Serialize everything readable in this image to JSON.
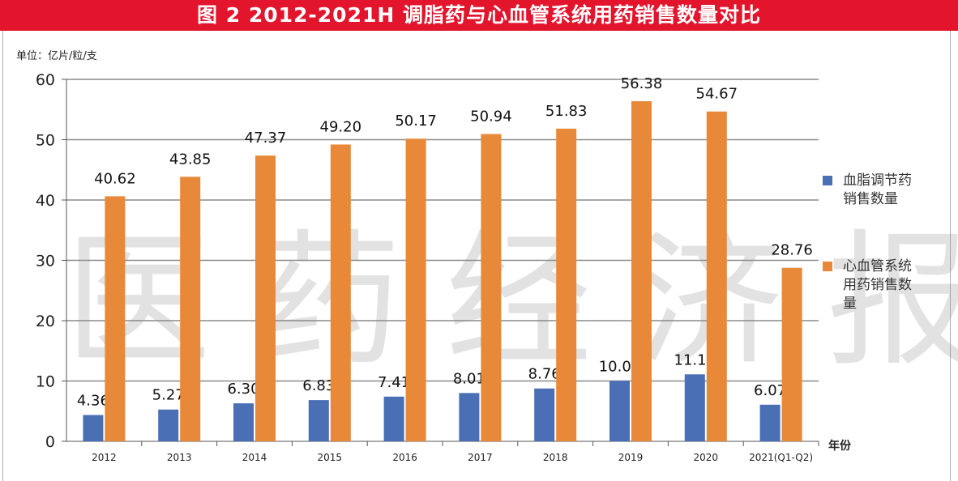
{
  "title": "图 2   2012-2021H 调脂药与心血管系统用药销售数量对比",
  "watermark": "医药经济报",
  "chart_data": {
    "type": "bar",
    "title": "图 2   2012-2021H 调脂药与心血管系统用药销售数量对比",
    "ylabel": "单位：亿片/粒/支",
    "xlabel": "年份",
    "ylim": [
      0,
      60
    ],
    "yticks": [
      0,
      10,
      20,
      30,
      40,
      50,
      60
    ],
    "grid": true,
    "legend_position": "right",
    "categories": [
      "2012",
      "2013",
      "2014",
      "2015",
      "2016",
      "2017",
      "2018",
      "2019",
      "2020",
      "2021(Q1-Q2)"
    ],
    "series": [
      {
        "name": "血脂调节药销售数量",
        "color": "#4a6fb5",
        "values": [
          4.36,
          5.27,
          6.3,
          6.83,
          7.41,
          8.01,
          8.76,
          10.03,
          11.1,
          6.07
        ],
        "labels": [
          "4.36",
          "5.27",
          "6.30",
          "6.83",
          "7.41",
          "8.01",
          "8.76",
          "10.03",
          "11.10",
          "6.07"
        ]
      },
      {
        "name": "心血管系统用药销售数量",
        "color": "#e8893a",
        "values": [
          40.62,
          43.85,
          47.37,
          49.2,
          50.17,
          50.94,
          51.83,
          56.38,
          54.67,
          28.76
        ],
        "labels": [
          "40.62",
          "43.85",
          "47.37",
          "49.20",
          "50.17",
          "50.94",
          "51.83",
          "56.38",
          "54.67",
          "28.76"
        ]
      }
    ]
  },
  "legend": [
    {
      "lines": [
        "血脂调节药",
        "销售数量"
      ]
    },
    {
      "lines": [
        "心血管系统",
        "用药销售数",
        "量"
      ]
    }
  ]
}
